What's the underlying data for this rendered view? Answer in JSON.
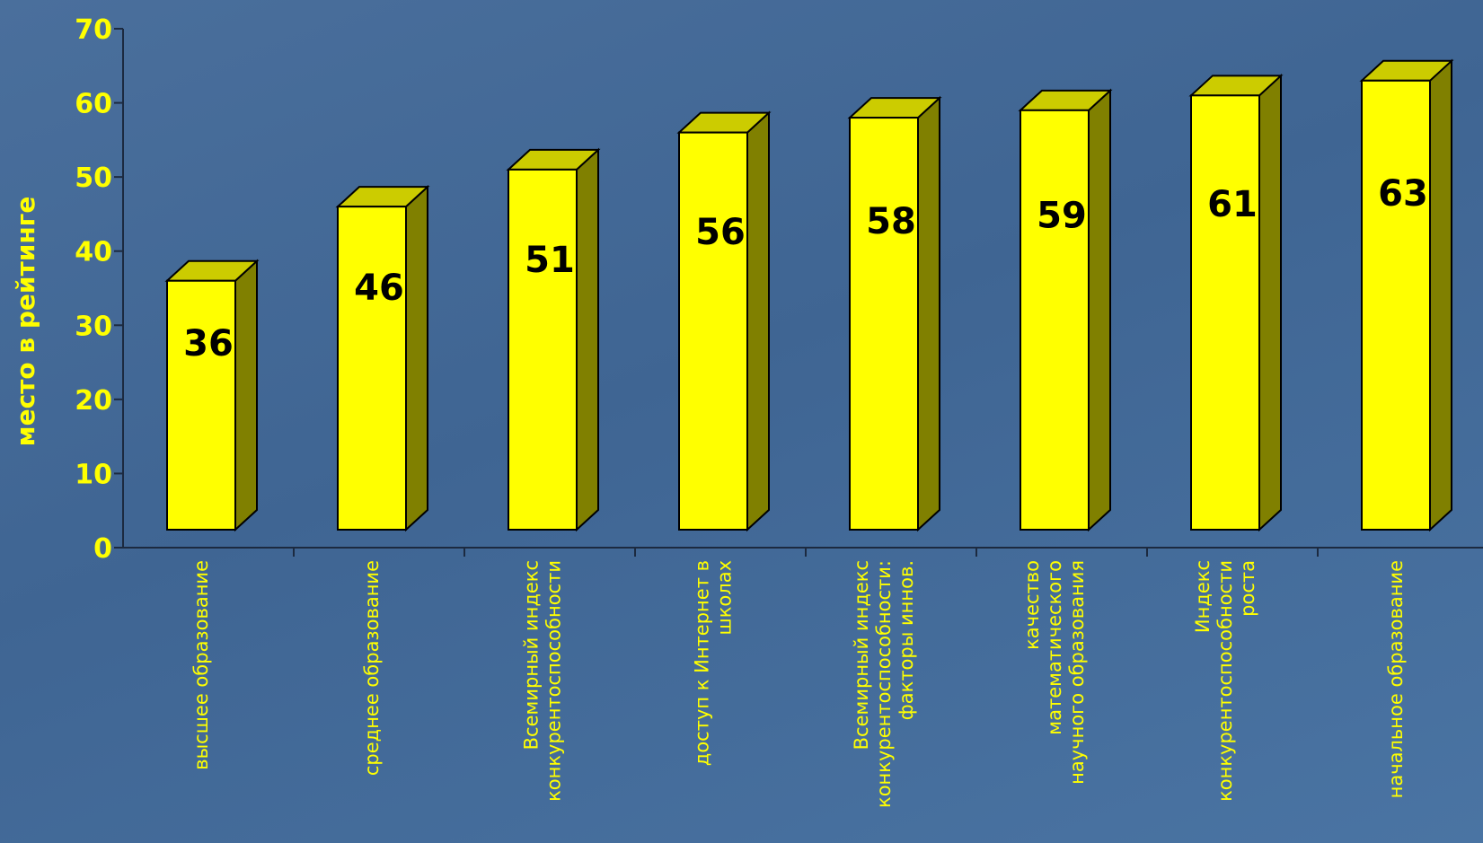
{
  "chart_data": {
    "type": "bar",
    "style": "3d-column",
    "ylabel": "место в рейтинге",
    "ylim": [
      0,
      70
    ],
    "yticks": [
      "0",
      "10",
      "20",
      "30",
      "40",
      "50",
      "60",
      "70"
    ],
    "categories": [
      [
        "высшее образование"
      ],
      [
        "среднее образование"
      ],
      [
        "Всемирный индекс",
        "конкурентоспособности"
      ],
      [
        "доступ к Интернет в",
        "школах"
      ],
      [
        "Всемирный индекс",
        "конкурентоспособности:",
        "факторы иннов."
      ],
      [
        "качество",
        "математического",
        "научного образования"
      ],
      [
        "Индекс",
        "конкурентоспособности",
        "роста"
      ],
      [
        "начальное образование"
      ]
    ],
    "values": [
      36,
      46,
      51,
      56,
      58,
      59,
      61,
      63
    ],
    "data_labels": [
      "36",
      "46",
      "51",
      "56",
      "58",
      "59",
      "61",
      "63"
    ],
    "colors": {
      "bar_front": "#ffff00",
      "bar_top": "#cccc00",
      "bar_side": "#808000",
      "text": "#ffff00",
      "axis": "#1c2a40"
    },
    "grid": false,
    "legend": "none"
  }
}
